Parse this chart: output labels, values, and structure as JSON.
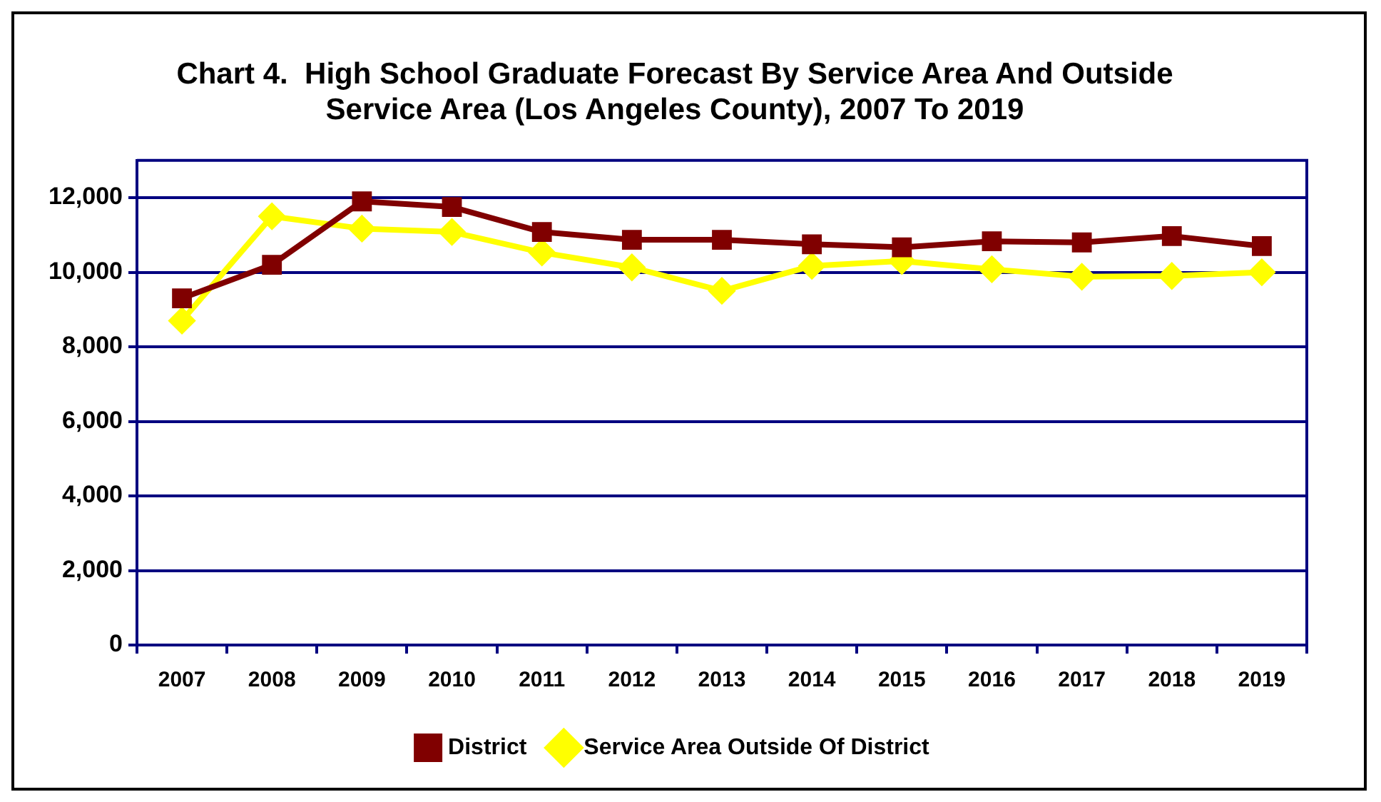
{
  "chart_data": {
    "type": "line",
    "title": "Chart 4.  High School Graduate Forecast By Service Area And Outside Service Area (Los Angeles County), 2007 To 2019",
    "categories": [
      "2007",
      "2008",
      "2009",
      "2010",
      "2011",
      "2012",
      "2013",
      "2014",
      "2015",
      "2016",
      "2017",
      "2018",
      "2019"
    ],
    "series": [
      {
        "name": "District",
        "color": "#800000",
        "marker": "square",
        "values": [
          9300,
          10200,
          11900,
          11750,
          11080,
          10870,
          10870,
          10750,
          10670,
          10830,
          10800,
          10970,
          10700
        ]
      },
      {
        "name": "Service Area Outside Of District",
        "color": "#ffff00",
        "marker": "diamond",
        "values": [
          8700,
          11500,
          11170,
          11080,
          10530,
          10130,
          9500,
          10170,
          10300,
          10080,
          9880,
          9900,
          10000
        ]
      }
    ],
    "ylim": [
      0,
      13000
    ],
    "yticks": [
      0,
      {
        "value": 2000,
        "label": "2,000"
      },
      {
        "value": 4000,
        "label": "4,000"
      },
      {
        "value": 6000,
        "label": "6,000"
      },
      {
        "value": 8000,
        "label": "8,000"
      },
      {
        "value": 10000,
        "label": "10,000"
      },
      {
        "value": 12000,
        "label": "12,000"
      }
    ],
    "grid": "y",
    "legend": "bottom"
  }
}
